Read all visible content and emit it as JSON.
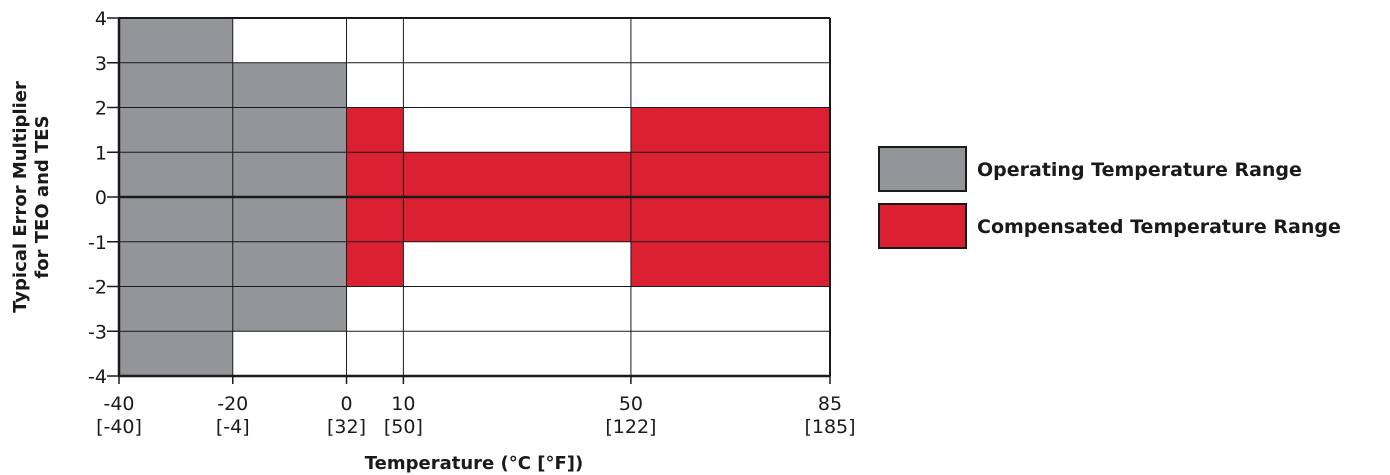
{
  "chart_data": {
    "type": "area",
    "xlabel": "Temperature (°C [°F])",
    "ylabel": [
      "Typical Error Multiplier",
      "for TEO and TES"
    ],
    "xlim": [
      -40,
      85
    ],
    "ylim": [
      -4,
      4
    ],
    "x_ticks": [
      {
        "value": -40,
        "celsius": "-40",
        "fahrenheit": "[-40]"
      },
      {
        "value": -20,
        "celsius": "-20",
        "fahrenheit": "[-4]"
      },
      {
        "value": 0,
        "celsius": "0",
        "fahrenheit": "[32]"
      },
      {
        "value": 10,
        "celsius": "10",
        "fahrenheit": "[50]"
      },
      {
        "value": 50,
        "celsius": "50",
        "fahrenheit": "[122]"
      },
      {
        "value": 85,
        "celsius": "85",
        "fahrenheit": "[185]"
      }
    ],
    "y_ticks": [
      {
        "value": 4,
        "label": "4"
      },
      {
        "value": 3,
        "label": "3"
      },
      {
        "value": 2,
        "label": "2"
      },
      {
        "value": 1,
        "label": "1"
      },
      {
        "value": 0,
        "label": "0"
      },
      {
        "value": -1,
        "label": "-1"
      },
      {
        "value": -2,
        "label": "-2"
      },
      {
        "value": -3,
        "label": "-3"
      },
      {
        "value": -4,
        "label": "-4"
      }
    ],
    "grid": true,
    "legend_position": "right",
    "series": [
      {
        "name": "Operating Temperature Range",
        "color": "#939598",
        "segments": [
          {
            "x_start": -40,
            "x_end": -20,
            "y_max": 4
          },
          {
            "x_start": -20,
            "x_end": 0,
            "y_max": 3
          }
        ]
      },
      {
        "name": "Compensated Temperature Range",
        "color": "#db2131",
        "segments": [
          {
            "x_start": 0,
            "x_end": 10,
            "y_max": 2
          },
          {
            "x_start": 10,
            "x_end": 50,
            "y_max": 1
          },
          {
            "x_start": 50,
            "x_end": 85,
            "y_max": 2
          }
        ]
      }
    ]
  }
}
